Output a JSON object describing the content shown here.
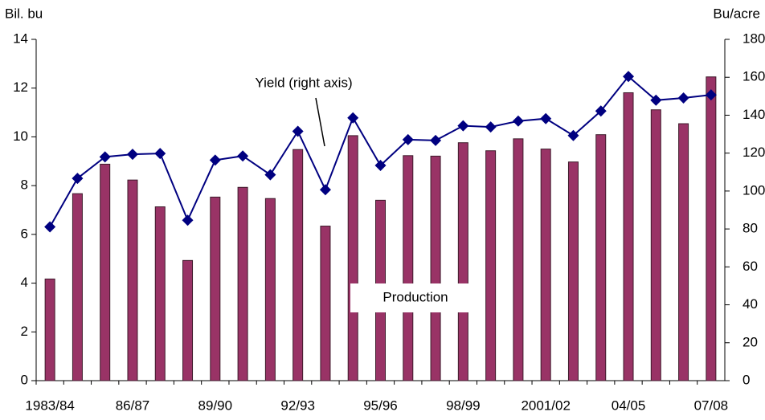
{
  "chart_data": {
    "type": "bar",
    "y_label": "Bil. bu",
    "y2_label": "Bu/acre",
    "categories": [
      "1983/84",
      null,
      null,
      "86/87",
      null,
      null,
      "89/90",
      null,
      null,
      "92/93",
      null,
      null,
      "95/96",
      null,
      null,
      "98/99",
      null,
      null,
      "2001/02",
      null,
      null,
      "04/05",
      null,
      null,
      "07/08"
    ],
    "series": [
      {
        "name": "Production",
        "type": "bar",
        "color": "#993366",
        "values": [
          4.17,
          7.67,
          8.88,
          8.23,
          7.13,
          4.93,
          7.53,
          7.93,
          7.47,
          9.48,
          6.34,
          10.05,
          7.4,
          9.23,
          9.21,
          9.76,
          9.43,
          9.92,
          9.5,
          8.97,
          10.09,
          11.81,
          11.11,
          10.54,
          12.46
        ]
      },
      {
        "name": "Yield (right axis)",
        "type": "line",
        "axis": "y2",
        "color": "#000080",
        "values": [
          81.1,
          106.7,
          118.0,
          119.4,
          119.8,
          84.6,
          116.3,
          118.5,
          108.6,
          131.5,
          100.7,
          138.6,
          113.5,
          127.1,
          126.7,
          134.4,
          133.8,
          136.9,
          138.2,
          129.3,
          142.2,
          160.4,
          147.9,
          149.1,
          150.7
        ]
      }
    ],
    "ylim": [
      0,
      14
    ],
    "yticks": [
      0,
      2,
      4,
      6,
      8,
      10,
      12,
      14
    ],
    "y2lim": [
      0,
      180
    ],
    "y2ticks": [
      0,
      20,
      40,
      60,
      80,
      100,
      120,
      140,
      160,
      180
    ]
  }
}
